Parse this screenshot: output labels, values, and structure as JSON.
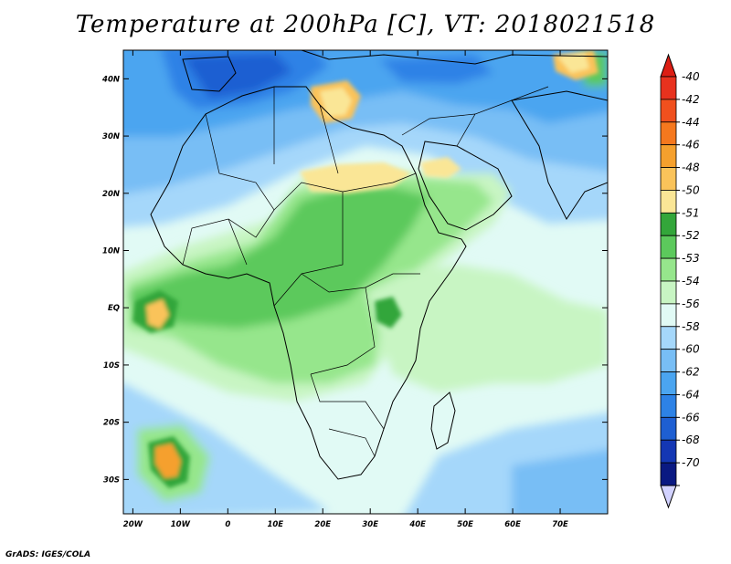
{
  "title": "Temperature at 200hPa [C], VT: 2018021518",
  "footer": "GrADS: IGES/COLA",
  "map": {
    "lat_labels": [
      "40N",
      "30N",
      "20N",
      "10N",
      "EQ",
      "10S",
      "20S",
      "30S"
    ],
    "lon_labels": [
      "20W",
      "10W",
      "0",
      "10E",
      "20E",
      "30E",
      "40E",
      "50E",
      "60E",
      "70E"
    ],
    "lat_values": [
      40,
      30,
      20,
      10,
      0,
      -10,
      -20,
      -30
    ],
    "lon_values": [
      -20,
      -10,
      0,
      10,
      20,
      30,
      40,
      50,
      60,
      70
    ],
    "extent": {
      "lon_min": -22,
      "lon_max": 80,
      "lat_min": -36,
      "lat_max": 45
    }
  },
  "colorbar": {
    "labels": [
      "-40",
      "-42",
      "-44",
      "-46",
      "-48",
      "-50",
      "-51",
      "-52",
      "-53",
      "-54",
      "-56",
      "-58",
      "-60",
      "-62",
      "-64",
      "-66",
      "-68",
      "-70"
    ],
    "colors": [
      "#e8321e",
      "#f0501e",
      "#f5781e",
      "#f5a02d",
      "#fac35a",
      "#fae696",
      "#33a63a",
      "#5cc95c",
      "#96e68c",
      "#c8f5c3",
      "#e1faf5",
      "#a5d7fa",
      "#78bef5",
      "#4ba5f0",
      "#2d82e6",
      "#1e5fd2",
      "#1437b4",
      "#0a1982"
    ],
    "arrow_top_color": "#dc1e14",
    "arrow_bottom_color": "#d2d2ff"
  }
}
